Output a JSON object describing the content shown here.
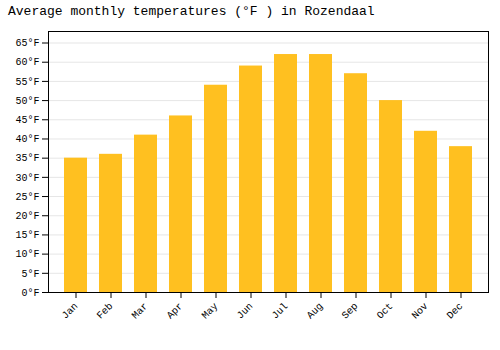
{
  "chart_data": {
    "type": "bar",
    "title": "Average monthly temperatures (°F ) in Rozendaal",
    "categories": [
      "Jan",
      "Feb",
      "Mar",
      "Apr",
      "May",
      "Jun",
      "Jul",
      "Aug",
      "Sep",
      "Oct",
      "Nov",
      "Dec"
    ],
    "values": [
      35,
      36,
      41,
      46,
      54,
      59,
      62,
      62,
      57,
      50,
      42,
      38
    ],
    "color": "#FFC020",
    "ylim": [
      0,
      68
    ],
    "yticks": [
      {
        "value": 0,
        "label": "0°F"
      },
      {
        "value": 5,
        "label": "5°F"
      },
      {
        "value": 10,
        "label": "10°F"
      },
      {
        "value": 15,
        "label": "15°F"
      },
      {
        "value": 20,
        "label": "20°F"
      },
      {
        "value": 25,
        "label": "25°F"
      },
      {
        "value": 30,
        "label": "30°F"
      },
      {
        "value": 35,
        "label": "35°F"
      },
      {
        "value": 40,
        "label": "40°F"
      },
      {
        "value": 45,
        "label": "45°F"
      },
      {
        "value": 50,
        "label": "50°F"
      },
      {
        "value": 55,
        "label": "55°F"
      },
      {
        "value": 60,
        "label": "60°F"
      },
      {
        "value": 65,
        "label": "65°F"
      }
    ],
    "grid": true
  }
}
